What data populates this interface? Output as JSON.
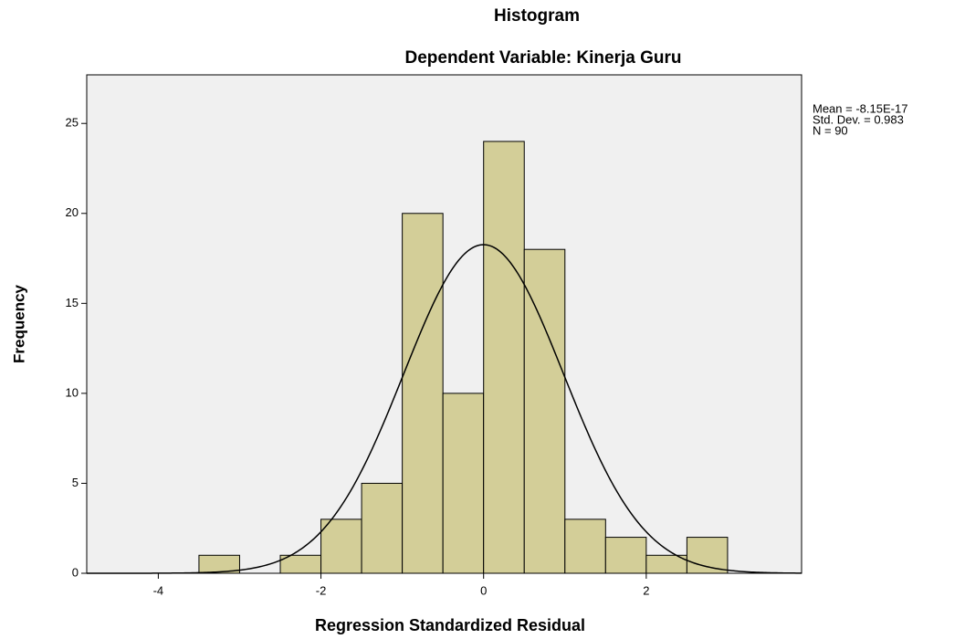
{
  "chart_data": {
    "type": "histogram",
    "title": "Histogram",
    "subtitle": "Dependent Variable: Kinerja Guru",
    "xlabel": "Regression Standardized Residual",
    "ylabel": "Frequency",
    "bins": [
      -3.5,
      -3.0,
      -2.5,
      -2.0,
      -1.5,
      -1.0,
      -0.5,
      0.0,
      0.5,
      1.0,
      1.5,
      2.0,
      2.5,
      3.0
    ],
    "values": [
      1,
      0,
      1,
      3,
      5,
      20,
      10,
      24,
      18,
      3,
      2,
      1,
      2
    ],
    "color": "#d3ce98",
    "xlim": [
      -4.88,
      3.91
    ],
    "xticks": [
      -4,
      -2,
      0,
      2
    ],
    "ylim": [
      0,
      27.7
    ],
    "yticks": [
      0,
      5,
      10,
      15,
      20,
      25
    ],
    "grid": false,
    "normal_curve": true,
    "stats": [
      {
        "value": -8.15e-17,
        "label": "Mean = -8.15E-17"
      },
      {
        "value": 0.983,
        "label": "Std. Dev. = 0.983"
      },
      {
        "value": 90,
        "label": "N = 90"
      }
    ]
  }
}
